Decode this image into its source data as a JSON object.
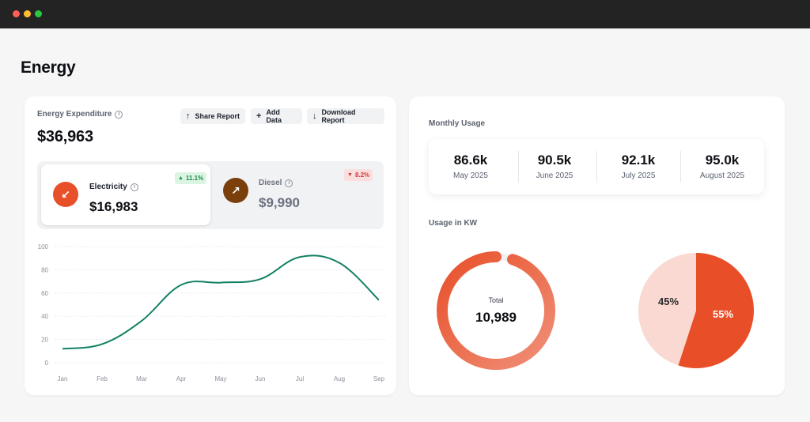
{
  "window": {
    "controls": [
      "close",
      "minimize",
      "maximize"
    ]
  },
  "page": {
    "title": "Energy"
  },
  "expenditure": {
    "label": "Energy Expenditure",
    "total": "$36,963",
    "actions": {
      "share": "Share Report",
      "add": "Add Data",
      "download": "Download Report"
    },
    "sources": [
      {
        "name": "Electricity",
        "value": "$16,983",
        "change": "11.1%",
        "trend": "up",
        "icon": "arrow-down-left-icon",
        "color": "#e8502a"
      },
      {
        "name": "Diesel",
        "value": "$9,990",
        "change": "8.2%",
        "trend": "down",
        "icon": "arrow-up-right-icon",
        "color": "#7b3f0c"
      }
    ]
  },
  "chart_data": {
    "type": "line",
    "categories": [
      "Jan",
      "Feb",
      "Mar",
      "Apr",
      "May",
      "Jun",
      "Jul",
      "Aug",
      "Sep"
    ],
    "values": [
      12,
      16,
      36,
      67,
      69,
      72,
      91,
      86,
      54
    ],
    "y_ticks": [
      "0",
      "20",
      "40",
      "60",
      "80",
      "100"
    ],
    "ylim": [
      0,
      100
    ],
    "color": "#138064",
    "grid": true
  },
  "monthly": {
    "label": "Monthly Usage",
    "stats": [
      {
        "value": "86.6k",
        "month": "May 2025"
      },
      {
        "value": "90.5k",
        "month": "June 2025"
      },
      {
        "value": "92.1k",
        "month": "July 2025"
      },
      {
        "value": "95.0k",
        "month": "August 2025"
      }
    ]
  },
  "usage": {
    "label": "Usage in KW",
    "total_label": "Total",
    "total_value": "10,989",
    "donut_fraction": 0.95,
    "pie": {
      "slices": [
        {
          "label": "55%",
          "value": 55,
          "color": "#e84e27"
        },
        {
          "label": "45%",
          "value": 45,
          "color": "#f9d9d1"
        }
      ]
    }
  }
}
